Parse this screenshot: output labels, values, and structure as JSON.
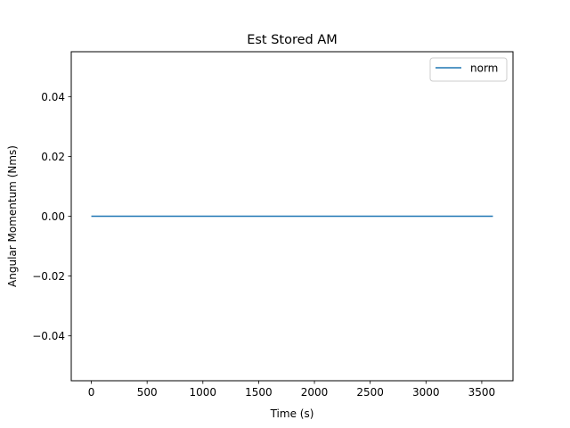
{
  "chart_data": {
    "type": "line",
    "title": "Est Stored AM",
    "xlabel": "Time (s)",
    "ylabel": "Angular Momentum (Nms)",
    "xlim": [
      -180,
      3780
    ],
    "ylim": [
      -0.055,
      0.055
    ],
    "xticks": [
      0,
      500,
      1000,
      1500,
      2000,
      2500,
      3000,
      3500
    ],
    "xtick_labels": [
      "0",
      "500",
      "1000",
      "1500",
      "2000",
      "2500",
      "3000",
      "3500"
    ],
    "yticks": [
      -0.04,
      -0.02,
      0.0,
      0.02,
      0.04
    ],
    "ytick_labels": [
      "−0.04",
      "−0.02",
      "0.00",
      "0.02",
      "0.04"
    ],
    "grid": false,
    "legend_position": "top-right",
    "series": [
      {
        "name": "norm",
        "color": "#1f77b4",
        "x": [
          0,
          3600
        ],
        "y": [
          0.0,
          0.0
        ]
      }
    ]
  }
}
